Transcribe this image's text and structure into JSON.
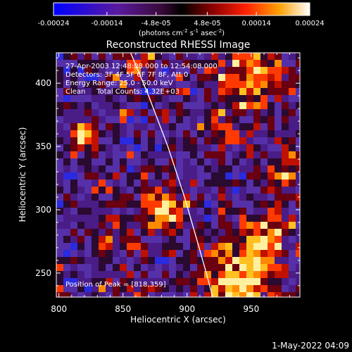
{
  "colorbar": {
    "tick_labels": [
      "-0.00024",
      "-0.00014",
      "-4.8e-05",
      "4.8e-05",
      "0.00014",
      "0.00024"
    ],
    "tick_values": [
      -0.00024,
      -0.00014,
      -4.8e-05,
      4.8e-05,
      0.00014,
      0.00024
    ],
    "range": [
      -0.00024,
      0.00024
    ],
    "unit_label": "(photons cm",
    "unit_exp1": "-2",
    "unit_mid1": " s",
    "unit_exp2": "-1",
    "unit_mid2": " asec",
    "unit_exp3": "-2",
    "unit_end": ")"
  },
  "chart_data": {
    "type": "heatmap",
    "title": "Reconstructed RHESSI Image",
    "xlabel": "Heliocentric X (arcsec)",
    "ylabel": "Heliocentric Y (arcsec)",
    "xlim": [
      798,
      988
    ],
    "ylim": [
      231,
      424
    ],
    "x_ticks": [
      800,
      850,
      900,
      950
    ],
    "y_ticks": [
      250,
      300,
      350,
      400
    ],
    "annotations": [
      "27-Apr-2003 12:48:08.000 to 12:54:08.000",
      "Detectors: 3F 4F 5F 6F 7F 8F, Att 0",
      "Energy Range: 25.0 - 50.0 keV",
      "Clean     Total Counts: 4.32E+03"
    ],
    "peak_label": "Position of Peak = [818,359]",
    "peak": [
      818,
      359
    ],
    "limb_curve": [
      [
        856,
        424
      ],
      [
        870,
        390
      ],
      [
        885,
        350
      ],
      [
        898,
        310
      ],
      [
        908,
        275
      ],
      [
        915,
        250
      ],
      [
        920,
        231
      ]
    ],
    "grid": false
  },
  "footer": {
    "date": "1-May-2022 04:09"
  }
}
